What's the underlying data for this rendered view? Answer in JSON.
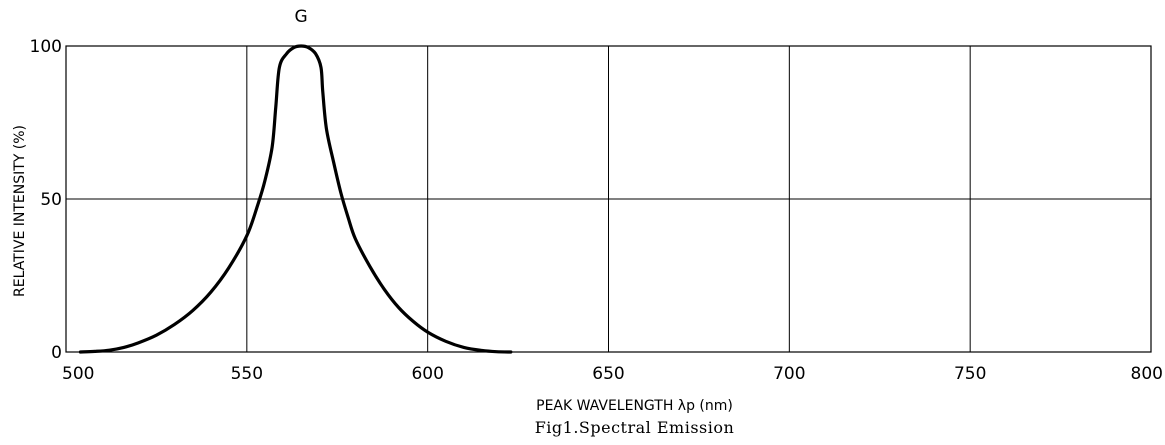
{
  "chart_data": {
    "type": "line",
    "title": "",
    "caption": "Fig1.Spectral Emission",
    "xlabel": "PEAK WAVELENGTH λp (nm)",
    "ylabel": "RELATIVE INTENSITY (%)",
    "xlim": [
      500,
      800
    ],
    "ylim": [
      0,
      100
    ],
    "xticks": [
      500,
      550,
      600,
      650,
      700,
      750,
      800
    ],
    "yticks": [
      0,
      50,
      100
    ],
    "grid": true,
    "series": [
      {
        "name": "G",
        "color": "#000000",
        "points": [
          [
            504,
            0
          ],
          [
            508,
            0.2
          ],
          [
            512,
            0.6
          ],
          [
            516,
            1.5
          ],
          [
            520,
            3
          ],
          [
            525,
            5.5
          ],
          [
            530,
            9
          ],
          [
            535,
            13.5
          ],
          [
            540,
            19.5
          ],
          [
            545,
            27.5
          ],
          [
            550,
            38
          ],
          [
            553,
            48
          ],
          [
            555,
            56
          ],
          [
            557,
            67
          ],
          [
            558,
            80
          ],
          [
            559,
            93
          ],
          [
            561,
            97.5
          ],
          [
            563,
            99.5
          ],
          [
            565,
            100
          ],
          [
            567,
            99.5
          ],
          [
            569,
            97.5
          ],
          [
            570.5,
            93
          ],
          [
            571,
            85
          ],
          [
            572,
            73
          ],
          [
            574,
            62
          ],
          [
            576,
            52
          ],
          [
            578,
            44
          ],
          [
            580,
            37
          ],
          [
            584,
            28
          ],
          [
            588,
            20.5
          ],
          [
            592,
            14.5
          ],
          [
            596,
            10
          ],
          [
            600,
            6.5
          ],
          [
            605,
            3.5
          ],
          [
            610,
            1.5
          ],
          [
            615,
            0.5
          ],
          [
            619,
            0.1
          ],
          [
            623,
            0
          ]
        ]
      }
    ]
  }
}
